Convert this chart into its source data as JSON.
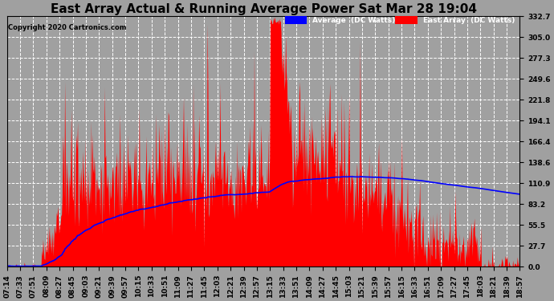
{
  "title": "East Array Actual & Running Average Power Sat Mar 28 19:04",
  "copyright": "Copyright 2020 Cartronics.com",
  "legend_labels": [
    "Average  (DC Watts)",
    "East Array  (DC Watts)"
  ],
  "yticks": [
    0.0,
    27.7,
    55.5,
    83.2,
    110.9,
    138.6,
    166.4,
    194.1,
    221.8,
    249.6,
    277.3,
    305.0,
    332.7
  ],
  "ymax": 332.7,
  "ymin": 0.0,
  "bg_color": "#a0a0a0",
  "plot_bg_color": "#a0a0a0",
  "title_fontsize": 11,
  "tick_fontsize": 6.5,
  "x_tick_labels": [
    "07:14",
    "07:33",
    "07:51",
    "08:09",
    "08:27",
    "08:45",
    "09:03",
    "09:21",
    "09:39",
    "09:57",
    "10:15",
    "10:33",
    "10:51",
    "11:09",
    "11:27",
    "11:45",
    "12:03",
    "12:21",
    "12:39",
    "12:57",
    "13:15",
    "13:33",
    "13:51",
    "14:09",
    "14:27",
    "14:45",
    "15:03",
    "15:21",
    "15:39",
    "15:57",
    "16:15",
    "16:33",
    "16:51",
    "17:09",
    "17:27",
    "17:45",
    "18:03",
    "18:21",
    "18:39",
    "18:57"
  ]
}
